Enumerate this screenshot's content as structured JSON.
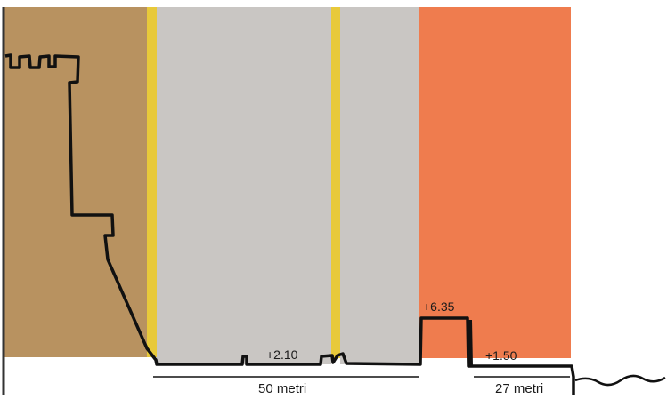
{
  "zones": [
    {
      "name": "castle-zone",
      "color": "#b89260"
    },
    {
      "name": "yellow-strip",
      "color": "#e8c93a"
    },
    {
      "name": "grey-zone",
      "color": "#c9c6c3"
    },
    {
      "name": "orange-zone",
      "color": "#ef7c4e"
    }
  ],
  "profile_color": "#111111",
  "annotations": {
    "elev_plaza": "+2.10",
    "elev_wall": "+6.35",
    "elev_ground": "+1.50",
    "dim_plaza": "50 metri",
    "dim_orange": "27 metri"
  }
}
